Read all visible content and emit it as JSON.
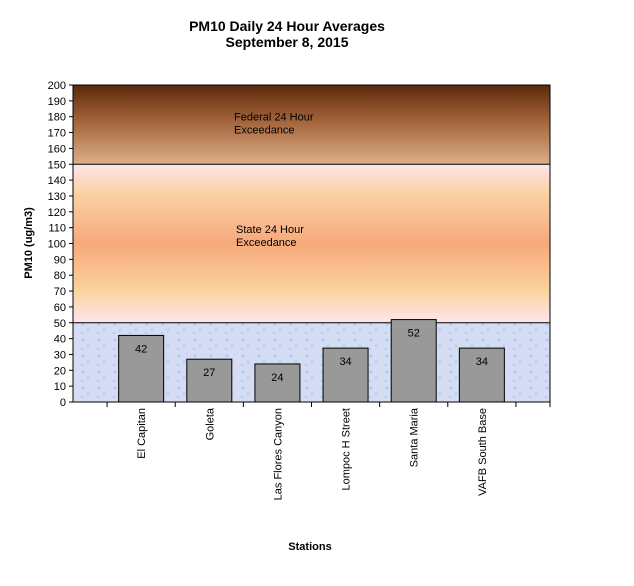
{
  "chart_data": {
    "type": "bar",
    "title": "PM10 Daily 24 Hour Averages",
    "subtitle": "September 8, 2015",
    "xlabel": "Stations",
    "ylabel": "PM10 (ug/m3)",
    "ylim": [
      0,
      200
    ],
    "ytick_step": 10,
    "categories": [
      "El Capitan",
      "Goleta",
      "Las Flores Canyon",
      "Lompoc H Street",
      "Santa Maria",
      "VAFB South Base"
    ],
    "values": [
      42,
      27,
      24,
      34,
      52,
      34
    ],
    "data_labels": [
      "42",
      "27",
      "24",
      "34",
      "52",
      "34"
    ],
    "bar_color": "#999999",
    "zones": [
      {
        "label_lines": [
          "Federal 24 Hour",
          "Exceedance"
        ],
        "from": 150,
        "to": 200,
        "colors": [
          "#5c2a0d",
          "#d9a77e"
        ]
      },
      {
        "label_lines": [
          "State 24 Hour",
          "Exceedance"
        ],
        "from": 50,
        "to": 150,
        "colors": [
          "#fde4ea",
          "#f7a878"
        ]
      },
      {
        "label_lines": [],
        "from": 0,
        "to": 50,
        "colors": [
          "#c9d6f2",
          "#e2c9ef"
        ]
      }
    ],
    "grid": false,
    "legend": "none"
  }
}
